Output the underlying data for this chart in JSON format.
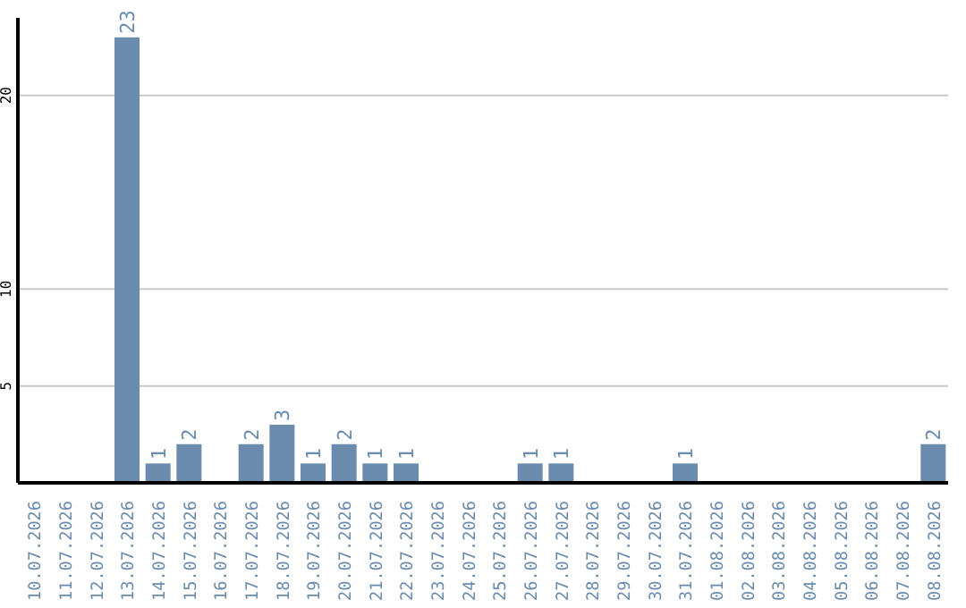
{
  "chart_data": {
    "type": "bar",
    "categories": [
      "10.07.2026",
      "11.07.2026",
      "12.07.2026",
      "13.07.2026",
      "14.07.2026",
      "15.07.2026",
      "16.07.2026",
      "17.07.2026",
      "18.07.2026",
      "19.07.2026",
      "20.07.2026",
      "21.07.2026",
      "22.07.2026",
      "23.07.2026",
      "24.07.2026",
      "25.07.2026",
      "26.07.2026",
      "27.07.2026",
      "28.07.2026",
      "29.07.2026",
      "30.07.2026",
      "31.07.2026",
      "01.08.2026",
      "02.08.2026",
      "03.08.2026",
      "04.08.2026",
      "05.08.2026",
      "06.08.2026",
      "07.08.2026",
      "08.08.2026"
    ],
    "values": [
      0,
      0,
      0,
      23,
      1,
      2,
      0,
      2,
      3,
      1,
      2,
      1,
      1,
      0,
      0,
      0,
      1,
      1,
      0,
      0,
      0,
      1,
      0,
      0,
      0,
      0,
      0,
      0,
      0,
      2
    ],
    "value_labels": [
      null,
      null,
      null,
      "23",
      "1",
      "2",
      null,
      "2",
      "3",
      "1",
      "2",
      "1",
      "1",
      null,
      null,
      null,
      "1",
      "1",
      null,
      null,
      null,
      "1",
      null,
      null,
      null,
      null,
      null,
      null,
      null,
      "2"
    ],
    "color": "#6b8cad",
    "ylim": [
      0,
      24
    ],
    "yticks": [
      5,
      10,
      20
    ],
    "grid": "y"
  }
}
